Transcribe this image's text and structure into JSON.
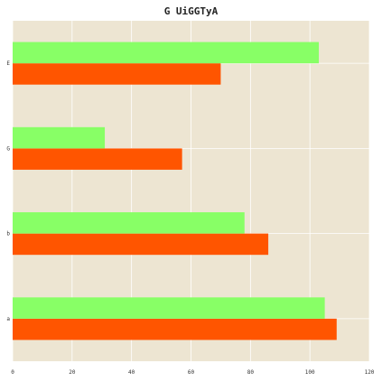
{
  "chart_data": {
    "type": "bar",
    "orientation": "horizontal",
    "title": "G UiGGTyA",
    "xlabel": "",
    "ylabel": "",
    "xlim": [
      0,
      120
    ],
    "x_ticks": [
      "0",
      "20",
      "40",
      "60",
      "80",
      "100",
      "120"
    ],
    "categories": [
      "a",
      "b",
      "G",
      "E"
    ],
    "series": [
      {
        "color": "#ff5500",
        "values": [
          109,
          86,
          57,
          70
        ]
      },
      {
        "color": "#88ff66",
        "values": [
          105,
          78,
          31,
          103
        ]
      }
    ],
    "grid": true,
    "legend": "none",
    "plot_background": "#ede5d2"
  }
}
